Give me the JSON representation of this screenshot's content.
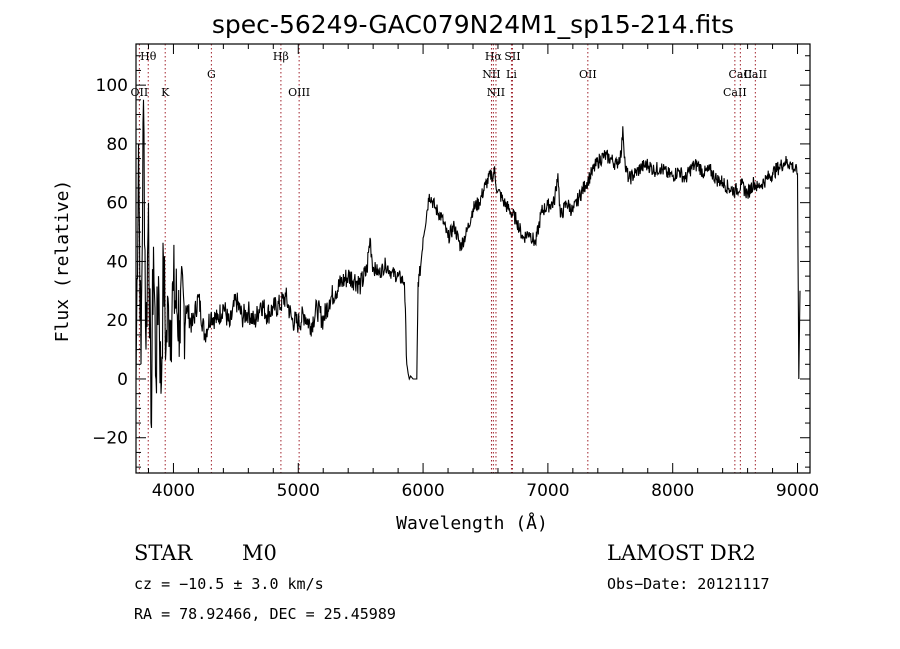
{
  "chart_data": {
    "type": "line",
    "title": "spec-56249-GAC079N24M1_sp15-214.fits",
    "xlabel": "Wavelength (Å)",
    "ylabel": "Flux (relative)",
    "xlim": [
      3700,
      9100
    ],
    "ylim": [
      -32,
      114
    ],
    "x_ticks": [
      4000,
      5000,
      6000,
      7000,
      8000,
      9000
    ],
    "x_tick_labels": [
      "4000",
      "5000",
      "6000",
      "7000",
      "8000",
      "9000"
    ],
    "y_ticks": [
      -20,
      0,
      20,
      40,
      60,
      80,
      100
    ],
    "y_tick_labels": [
      "−20",
      "0",
      "20",
      "40",
      "60",
      "80",
      "100"
    ],
    "line_color": "#000000",
    "marker_color": "#a0202a",
    "series": [
      {
        "x": [
          3700,
          3720,
          3740,
          3760,
          3780,
          3800,
          3820,
          3840,
          3860,
          3880,
          3900,
          3920,
          3940,
          3960,
          3980,
          4000,
          4050,
          4100,
          4150,
          4200,
          4250,
          4300,
          4350,
          4400,
          4450,
          4500,
          4550,
          4600,
          4650,
          4700,
          4750,
          4800,
          4850,
          4900,
          4950,
          5000,
          5050,
          5100,
          5150,
          5200,
          5250,
          5300,
          5350,
          5400,
          5450,
          5500,
          5550,
          5575,
          5600,
          5650,
          5700,
          5750,
          5800,
          5850,
          5870,
          5880,
          5890,
          5900,
          5920,
          5940,
          5950,
          5960,
          5970,
          5980,
          6000,
          6050,
          6100,
          6150,
          6200,
          6250,
          6300,
          6350,
          6400,
          6450,
          6500,
          6550,
          6560,
          6570,
          6580,
          6600,
          6650,
          6700,
          6750,
          6800,
          6850,
          6900,
          6950,
          7000,
          7050,
          7080,
          7100,
          7150,
          7200,
          7250,
          7300,
          7350,
          7400,
          7450,
          7500,
          7550,
          7590,
          7600,
          7620,
          7650,
          7700,
          7750,
          7800,
          7850,
          7900,
          7950,
          8000,
          8050,
          8100,
          8150,
          8200,
          8250,
          8300,
          8350,
          8400,
          8450,
          8500,
          8550,
          8600,
          8650,
          8680,
          8700,
          8750,
          8800,
          8850,
          8900,
          8950,
          9000,
          9010,
          9020
        ],
        "y": [
          0,
          80,
          5,
          95,
          10,
          60,
          -15,
          45,
          0,
          35,
          -5,
          40,
          10,
          25,
          20,
          30,
          20,
          25,
          18,
          28,
          15,
          22,
          20,
          25,
          18,
          27,
          21,
          23,
          19,
          26,
          22,
          24,
          25,
          28,
          20,
          19,
          22,
          18,
          24,
          20,
          27,
          30,
          33,
          35,
          34,
          32,
          37,
          48,
          38,
          36,
          39,
          36,
          35,
          33,
          5,
          2,
          0,
          1,
          0,
          0,
          0,
          33,
          35,
          38,
          48,
          63,
          58,
          55,
          48,
          52,
          45,
          50,
          58,
          60,
          66,
          70,
          68,
          72,
          67,
          64,
          60,
          57,
          54,
          48,
          50,
          46,
          57,
          59,
          60,
          70,
          55,
          60,
          57,
          62,
          66,
          70,
          74,
          76,
          75,
          73,
          77,
          86,
          72,
          68,
          70,
          72,
          73,
          71,
          72,
          70,
          69,
          71,
          68,
          72,
          73,
          70,
          71,
          68,
          67,
          65,
          64,
          66,
          63,
          67,
          65,
          66,
          68,
          70,
          72,
          74,
          73,
          70,
          0,
          30
        ]
      }
    ],
    "line_markers": [
      {
        "label": "Hθ",
        "x": 3798,
        "row": 0
      },
      {
        "label": "OII",
        "x": 3727,
        "row": 2
      },
      {
        "label": "K",
        "x": 3934,
        "row": 2
      },
      {
        "label": "G",
        "x": 4304,
        "row": 1
      },
      {
        "label": "Hβ",
        "x": 4861,
        "row": 0
      },
      {
        "label": "OIII",
        "x": 5007,
        "row": 2
      },
      {
        "label": "Hα",
        "x": 6563,
        "row": 0
      },
      {
        "label": "SII",
        "x": 6716,
        "row": 0
      },
      {
        "label": "NII",
        "x": 6548,
        "row": 1
      },
      {
        "label": "Li",
        "x": 6708,
        "row": 1
      },
      {
        "label": "NII",
        "x": 6584,
        "row": 2
      },
      {
        "label": "OII",
        "x": 7320,
        "row": 1
      },
      {
        "label": "CaII",
        "x": 8542,
        "row": 1
      },
      {
        "label": "CaII",
        "x": 8498,
        "row": 2
      },
      {
        "label": "CaII",
        "x": 8662,
        "row": 1
      }
    ]
  },
  "footer": {
    "class_label": "STAR",
    "subclass": "M0",
    "survey": "LAMOST DR2",
    "cz": "cz = −10.5 ± 3.0 km/s",
    "obs_date": "Obs−Date: 20121117",
    "radec": "RA =  78.92466, DEC =  25.45989"
  }
}
